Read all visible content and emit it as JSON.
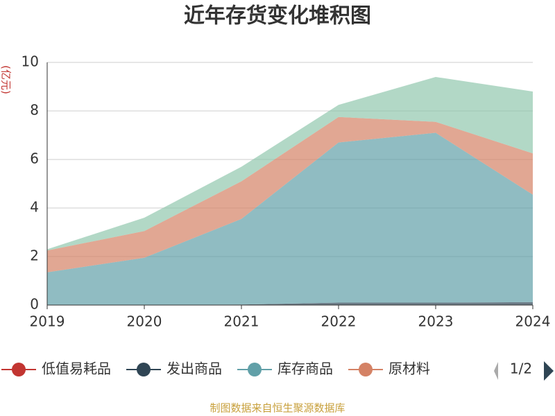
{
  "chart_data": {
    "type": "stacked_area",
    "title": "近年存货变化堆积图",
    "y_axis_label": "(亿元)",
    "categories": [
      "2019",
      "2020",
      "2021",
      "2022",
      "2023",
      "2024"
    ],
    "series": [
      {
        "name": "低值易耗品",
        "color": "#c23531",
        "values": [
          0,
          0,
          0,
          0,
          0,
          0
        ]
      },
      {
        "name": "发出商品",
        "color": "#2f4554",
        "values": [
          0,
          0,
          0.02,
          0.1,
          0.1,
          0.12
        ]
      },
      {
        "name": "库存商品",
        "color": "#61a0a8",
        "values": [
          1.35,
          1.95,
          3.53,
          6.6,
          7.0,
          4.43
        ]
      },
      {
        "name": "原材料",
        "color": "#d48265",
        "values": [
          0.9,
          1.1,
          1.55,
          1.05,
          0.45,
          1.7
        ]
      },
      {
        "color": "#91c7ae",
        "values": [
          0.05,
          0.55,
          0.6,
          0.5,
          1.85,
          2.55
        ]
      }
    ],
    "ylim": [
      0,
      10
    ],
    "yticks": [
      0,
      2,
      4,
      6,
      8,
      10
    ],
    "grid": true,
    "legend_page": "1/2",
    "source": "制图数据来自恒生聚源数据库"
  }
}
